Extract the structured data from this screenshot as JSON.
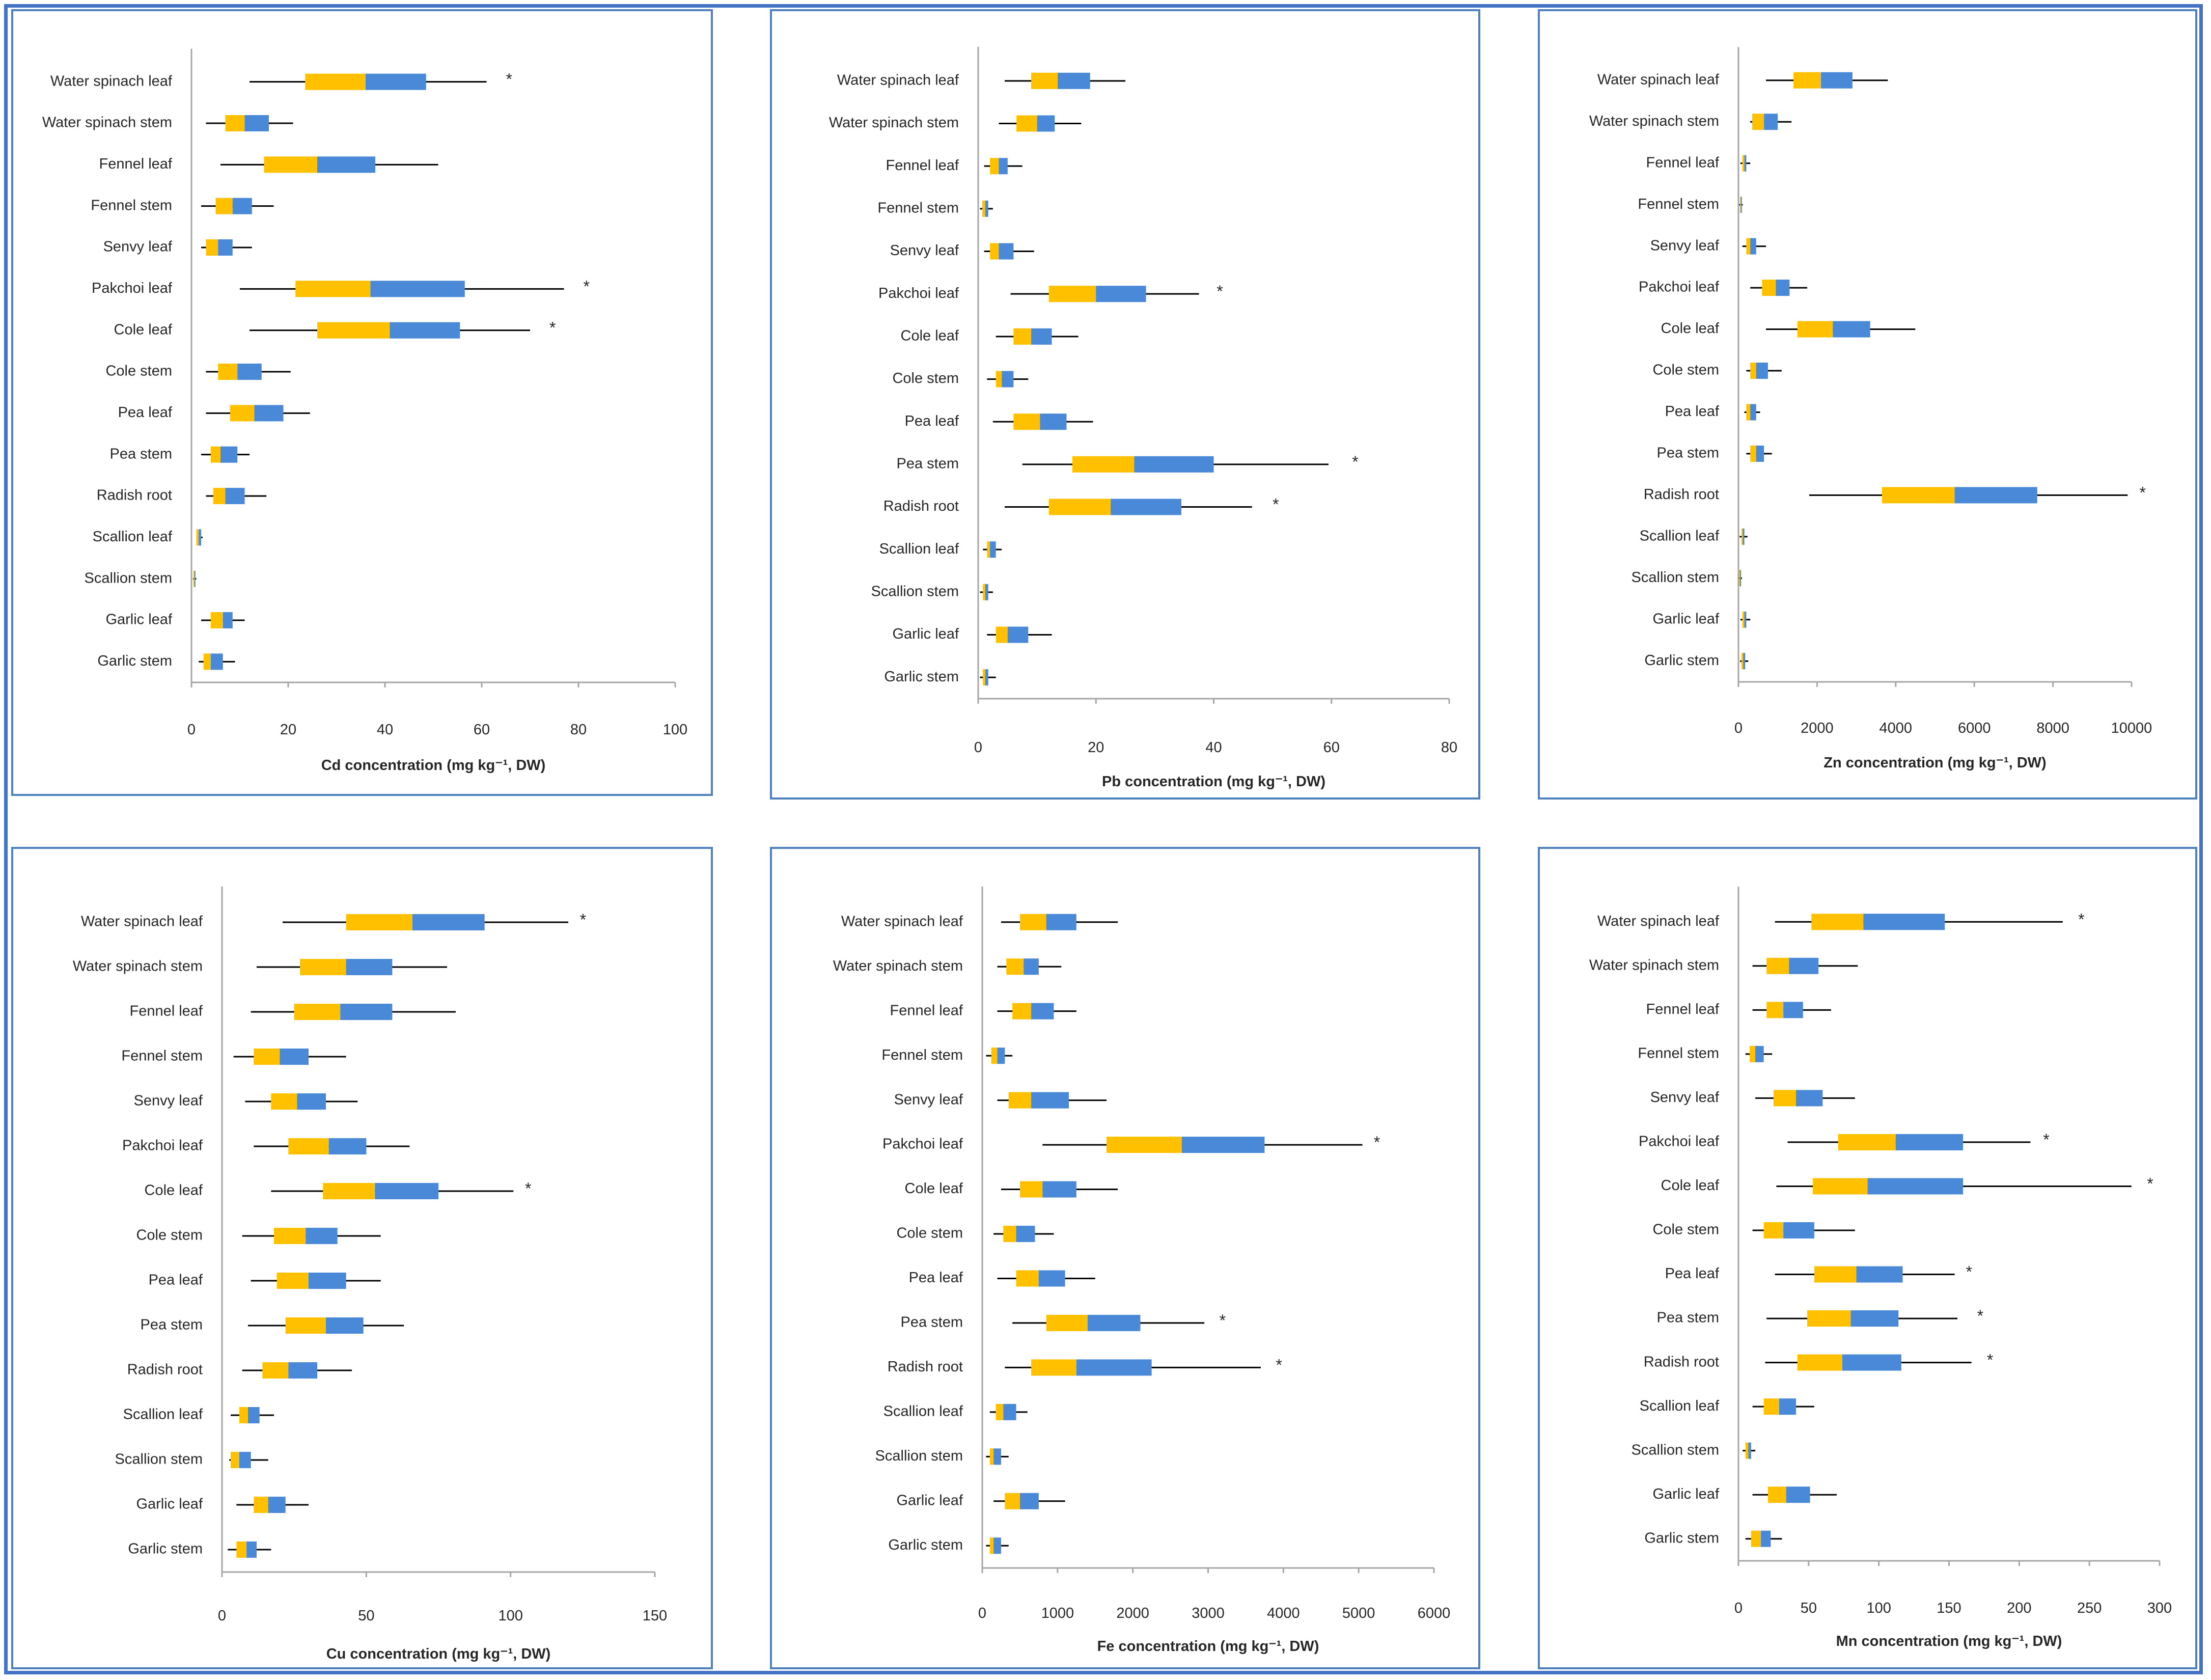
{
  "colors": {
    "lower_box": "#ffc000",
    "upper_box": "#4a89d8",
    "whisker": "#000000",
    "axis": "#a6a6a6",
    "frame": "#4472c4"
  },
  "chart_data": [
    {
      "id": "cd",
      "type": "boxplot-horizontal",
      "xlabel": "Cd  concentration (mg kg⁻¹, DW)",
      "xlim": [
        0,
        100
      ],
      "ticks": [
        0,
        20,
        40,
        60,
        80,
        100
      ],
      "tick_labels": [
        "0",
        "20",
        "40",
        "60",
        "80",
        "100"
      ],
      "categories": [
        "Water spinach leaf",
        "Water spinach stem",
        "Fennel leaf",
        "Fennel stem",
        "Senvy leaf",
        "Pakchoi leaf",
        "Cole leaf",
        "Cole stem",
        "Pea leaf",
        "Pea stem",
        "Radish root",
        "Scallion leaf",
        "Scallion stem",
        "Garlic leaf",
        "Garlic stem"
      ],
      "min": [
        12,
        3,
        6,
        2,
        2,
        10,
        12,
        3,
        3,
        2,
        3,
        1,
        0.3,
        2,
        1.5
      ],
      "q1": [
        23.5,
        7,
        15,
        5,
        3,
        21.5,
        26,
        5.5,
        8,
        4,
        4.5,
        1,
        0.4,
        4,
        2.5
      ],
      "median": [
        36,
        11,
        26,
        8.5,
        5.5,
        37,
        41,
        9.5,
        13,
        6,
        7,
        1.5,
        0.6,
        6.5,
        4
      ],
      "q3": [
        48.5,
        16,
        38,
        12.5,
        8.5,
        56.5,
        55.5,
        14.5,
        19,
        9.5,
        11,
        2,
        0.8,
        8.5,
        6.5
      ],
      "max": [
        61,
        21,
        51,
        17,
        12.5,
        77,
        70,
        20.5,
        24.5,
        12,
        15.5,
        2.3,
        1,
        11,
        9
      ],
      "outliers": [
        {
          "index": 0,
          "symbol": "*",
          "value": 65
        },
        {
          "index": 5,
          "symbol": "*",
          "value": 81
        },
        {
          "index": 6,
          "symbol": "*",
          "value": 74
        }
      ]
    },
    {
      "id": "pb",
      "type": "boxplot-horizontal",
      "xlabel": "Pb  concentration (mg kg⁻¹, DW)",
      "xlim": [
        0,
        80
      ],
      "ticks": [
        0,
        20,
        40,
        60,
        80
      ],
      "tick_labels": [
        "0",
        "20",
        "40",
        "60",
        "80"
      ],
      "categories": [
        "Water spinach leaf",
        "Water spinach stem",
        "Fennel leaf",
        "Fennel stem",
        "Senvy leaf",
        "Pakchoi leaf",
        "Cole leaf",
        "Cole stem",
        "Pea leaf",
        "Pea stem",
        "Radish root",
        "Scallion leaf",
        "Scallion stem",
        "Garlic leaf",
        "Garlic stem"
      ],
      "min": [
        4.5,
        3.5,
        1,
        0.3,
        1,
        5.5,
        3,
        1.5,
        2.5,
        7.5,
        4.5,
        0.8,
        0.3,
        1.5,
        0.3
      ],
      "q1": [
        9,
        6.5,
        2,
        0.7,
        2,
        12,
        6,
        3,
        6,
        16,
        12,
        1.5,
        0.8,
        3,
        0.8
      ],
      "median": [
        13.5,
        10,
        3.5,
        1.2,
        3.5,
        20,
        9,
        4,
        10.5,
        26.5,
        22.5,
        2,
        1.2,
        5,
        1.2
      ],
      "q3": [
        19,
        13,
        5,
        1.7,
        6,
        28.5,
        12.5,
        6,
        15,
        40,
        34.5,
        3,
        1.7,
        8.5,
        1.7
      ],
      "max": [
        25,
        17.5,
        7.5,
        2.5,
        9.5,
        37.5,
        17,
        8.5,
        19.5,
        59.5,
        46.5,
        4,
        2.5,
        12.5,
        3
      ],
      "outliers": [
        {
          "index": 5,
          "symbol": "*",
          "value": 40.5
        },
        {
          "index": 9,
          "symbol": "*",
          "value": 63.5
        },
        {
          "index": 10,
          "symbol": "*",
          "value": 50
        }
      ]
    },
    {
      "id": "zn",
      "type": "boxplot-horizontal",
      "xlabel": "Zn concentration (mg kg⁻¹, DW)",
      "xlim": [
        0,
        10000
      ],
      "ticks": [
        0,
        2000,
        4000,
        6000,
        8000,
        10000
      ],
      "tick_labels": [
        "0",
        "2000",
        "4000",
        "6000",
        "8000",
        "10000"
      ],
      "categories": [
        "Water spinach leaf",
        "Water spinach stem",
        "Fennel leaf",
        "Fennel stem",
        "Senvy leaf",
        "Pakchoi leaf",
        "Cole leaf",
        "Cole stem",
        "Pea leaf",
        "Pea stem",
        "Radish root",
        "Scallion leaf",
        "Scallion stem",
        "Garlic leaf",
        "Garlic stem"
      ],
      "min": [
        700,
        300,
        50,
        20,
        100,
        300,
        700,
        200,
        150,
        200,
        1800,
        30,
        10,
        50,
        40
      ],
      "q1": [
        1400,
        350,
        100,
        40,
        200,
        600,
        1500,
        300,
        200,
        300,
        3650,
        80,
        20,
        100,
        80
      ],
      "median": [
        2100,
        650,
        150,
        60,
        300,
        950,
        2400,
        450,
        300,
        450,
        5500,
        110,
        40,
        150,
        120
      ],
      "q3": [
        2900,
        1000,
        200,
        80,
        450,
        1300,
        3350,
        750,
        450,
        650,
        7600,
        150,
        60,
        200,
        170
      ],
      "max": [
        3800,
        1350,
        300,
        110,
        700,
        1750,
        4500,
        1100,
        550,
        850,
        9900,
        230,
        90,
        300,
        250
      ],
      "outliers": [
        {
          "index": 10,
          "symbol": "*",
          "value": 10200
        }
      ]
    },
    {
      "id": "cu",
      "type": "boxplot-horizontal",
      "xlabel": "Cu concentration (mg kg⁻¹, DW)",
      "xlim": [
        0,
        150
      ],
      "ticks": [
        0,
        50,
        100,
        150
      ],
      "tick_labels": [
        "0",
        "50",
        "100",
        "150"
      ],
      "categories": [
        "Water spinach leaf",
        "Water spinach stem",
        "Fennel leaf",
        "Fennel stem",
        "Senvy leaf",
        "Pakchoi leaf",
        "Cole leaf",
        "Cole stem",
        "Pea leaf",
        "Pea stem",
        "Radish root",
        "Scallion leaf",
        "Scallion stem",
        "Garlic leaf",
        "Garlic stem"
      ],
      "min": [
        21,
        12,
        10,
        4,
        8,
        11,
        17,
        7,
        10,
        9,
        7,
        3,
        2.5,
        5,
        2
      ],
      "q1": [
        43,
        27,
        25,
        11,
        17,
        23,
        35,
        18,
        19,
        22,
        14,
        6,
        3,
        11,
        5
      ],
      "median": [
        66,
        43,
        41,
        20,
        26,
        37,
        53,
        29,
        30,
        36,
        23,
        9,
        6,
        16,
        8.5
      ],
      "q3": [
        91,
        59,
        59,
        30,
        36,
        50,
        75,
        40,
        43,
        49,
        33,
        13,
        10,
        22,
        12
      ],
      "max": [
        120,
        78,
        81,
        43,
        47,
        65,
        101,
        55,
        55,
        63,
        45,
        18,
        16,
        30,
        17
      ],
      "outliers": [
        {
          "index": 0,
          "symbol": "*",
          "value": 124
        },
        {
          "index": 6,
          "symbol": "*",
          "value": 105
        }
      ]
    },
    {
      "id": "fe",
      "type": "boxplot-horizontal",
      "xlabel": "Fe  concentration (mg kg⁻¹, DW)",
      "xlim": [
        0,
        6000
      ],
      "ticks": [
        0,
        1000,
        2000,
        3000,
        4000,
        5000,
        6000
      ],
      "tick_labels": [
        "0",
        "1000",
        "2000",
        "3000",
        "4000",
        "5000",
        "6000"
      ],
      "categories": [
        "Water spinach leaf",
        "Water spinach stem",
        "Fennel leaf",
        "Fennel stem",
        "Senvy leaf",
        "Pakchoi leaf",
        "Cole leaf",
        "Cole stem",
        "Pea leaf",
        "Pea stem",
        "Radish root",
        "Scallion leaf",
        "Scallion stem",
        "Garlic leaf",
        "Garlic stem"
      ],
      "min": [
        250,
        200,
        200,
        50,
        200,
        800,
        250,
        150,
        200,
        400,
        300,
        100,
        50,
        150,
        50
      ],
      "q1": [
        500,
        320,
        400,
        120,
        350,
        1650,
        500,
        280,
        450,
        850,
        650,
        180,
        100,
        300,
        100
      ],
      "median": [
        850,
        550,
        650,
        200,
        650,
        2650,
        800,
        450,
        750,
        1400,
        1250,
        280,
        150,
        500,
        150
      ],
      "q3": [
        1250,
        750,
        950,
        300,
        1150,
        3750,
        1250,
        700,
        1100,
        2100,
        2250,
        450,
        250,
        750,
        250
      ],
      "max": [
        1800,
        1050,
        1250,
        400,
        1650,
        5050,
        1800,
        950,
        1500,
        2950,
        3700,
        600,
        350,
        1100,
        350
      ],
      "outliers": [
        {
          "index": 5,
          "symbol": "*",
          "value": 5200
        },
        {
          "index": 9,
          "symbol": "*",
          "value": 3150
        },
        {
          "index": 10,
          "symbol": "*",
          "value": 3900
        }
      ]
    },
    {
      "id": "mn",
      "type": "boxplot-horizontal",
      "xlabel": "Mn concentration (mg kg⁻¹, DW)",
      "xlim": [
        0,
        300
      ],
      "ticks": [
        0,
        50,
        100,
        150,
        200,
        250,
        300
      ],
      "tick_labels": [
        "0",
        "50",
        "100",
        "150",
        "200",
        "250",
        "300"
      ],
      "categories": [
        "Water spinach leaf",
        "Water spinach stem",
        "Fennel leaf",
        "Fennel stem",
        "Senvy leaf",
        "Pakchoi leaf",
        "Cole leaf",
        "Cole stem",
        "Pea leaf",
        "Pea stem",
        "Radish root",
        "Scallion leaf",
        "Scallion stem",
        "Garlic leaf",
        "Garlic stem"
      ],
      "min": [
        26,
        10,
        10,
        5,
        12,
        35,
        27,
        10,
        26,
        20,
        19,
        10,
        3,
        10,
        5
      ],
      "q1": [
        52,
        20,
        20,
        8,
        25,
        71,
        53,
        18,
        54,
        49,
        42,
        18,
        5,
        21,
        9
      ],
      "median": [
        89,
        36,
        32,
        12,
        41,
        112,
        92,
        32,
        84,
        80,
        74,
        29,
        7,
        34,
        16
      ],
      "q3": [
        147,
        57,
        46,
        18,
        60,
        160,
        160,
        54,
        117,
        114,
        116,
        41,
        9,
        51,
        23
      ],
      "max": [
        231,
        85,
        66,
        24,
        83,
        208,
        280,
        83,
        154,
        156,
        166,
        54,
        12,
        70,
        31
      ],
      "outliers": [
        {
          "index": 0,
          "symbol": "*",
          "value": 242
        },
        {
          "index": 5,
          "symbol": "*",
          "value": 217
        },
        {
          "index": 6,
          "symbol": "*",
          "value": 291
        },
        {
          "index": 8,
          "symbol": "*",
          "value": 162
        },
        {
          "index": 9,
          "symbol": "*",
          "value": 170
        },
        {
          "index": 10,
          "symbol": "*",
          "value": 177
        }
      ]
    }
  ]
}
